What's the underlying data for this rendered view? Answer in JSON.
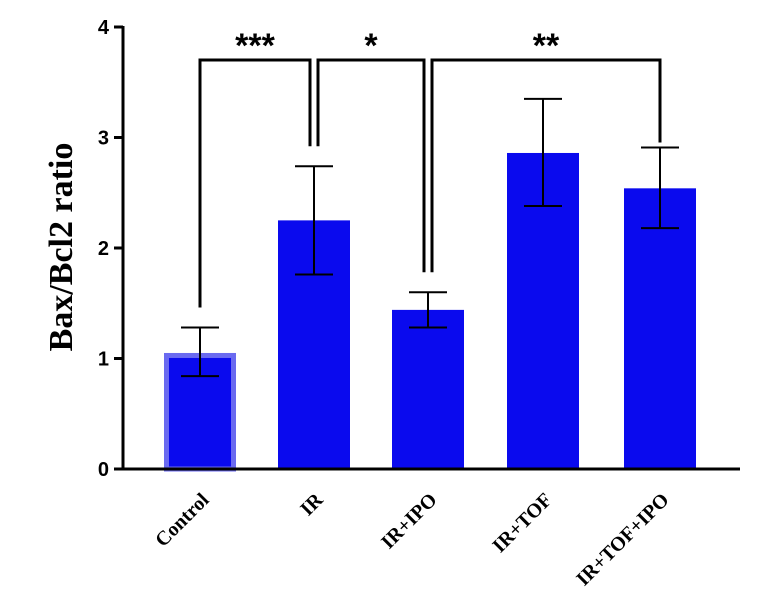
{
  "chart_data": {
    "type": "bar",
    "categories": [
      "Control",
      "IR",
      "IR+IPO",
      "IR+TOF",
      "IR+TOF+IPO"
    ],
    "values": [
      1.05,
      2.25,
      1.44,
      2.86,
      2.54
    ],
    "error_lower": [
      0.84,
      1.76,
      1.28,
      2.38,
      2.18
    ],
    "error_upper": [
      1.28,
      2.74,
      1.6,
      3.35,
      2.91
    ],
    "ylabel": "Bax/Bcl2 ratio",
    "xlabel": "",
    "ylim": [
      0,
      4
    ],
    "yticks": [
      0,
      1,
      2,
      3,
      4
    ],
    "bar_color": "#0a0aee",
    "highlight_border_color": "#6a6af0",
    "significance": [
      {
        "from": 0,
        "to": 1,
        "label": "***"
      },
      {
        "from": 1,
        "to": 2,
        "label": "*"
      },
      {
        "from": 2,
        "to": 4,
        "label": "**"
      }
    ],
    "grid": false,
    "legend": "none"
  }
}
